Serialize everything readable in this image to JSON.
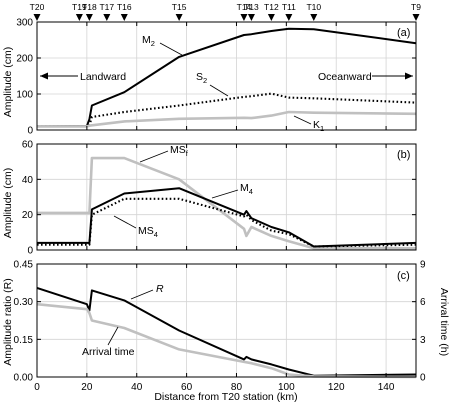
{
  "chart_data": [
    {
      "panel": "(a)",
      "type": "line",
      "xlabel": "",
      "ylabel": "Amplitude (cm)",
      "xlim": [
        0,
        152
      ],
      "ylim": [
        0,
        300
      ],
      "yticks": [
        0,
        100,
        200,
        300
      ],
      "grid": true,
      "stations": [
        {
          "name": "T20",
          "x": 0
        },
        {
          "name": "T19",
          "x": 17
        },
        {
          "name": "T18",
          "x": 21
        },
        {
          "name": "T17",
          "x": 28
        },
        {
          "name": "T16",
          "x": 35
        },
        {
          "name": "T15",
          "x": 57
        },
        {
          "name": "T14",
          "x": 83
        },
        {
          "name": "T13",
          "x": 86
        },
        {
          "name": "T12",
          "x": 94
        },
        {
          "name": "T11",
          "x": 101
        },
        {
          "name": "T10",
          "x": 111
        },
        {
          "name": "T9",
          "x": 152
        }
      ],
      "series": [
        {
          "name": "M2",
          "color": "#000000",
          "style": "solid",
          "x": [
            0,
            20,
            21,
            22,
            35,
            57,
            83,
            86,
            94,
            101,
            111,
            152
          ],
          "y": [
            10,
            11,
            30,
            68,
            105,
            203,
            264,
            266,
            275,
            281,
            280,
            241
          ]
        },
        {
          "name": "S2",
          "color": "#000000",
          "style": "dotted",
          "x": [
            0,
            20,
            21,
            22,
            35,
            57,
            83,
            86,
            94,
            101,
            111,
            152
          ],
          "y": [
            10,
            10,
            13,
            36,
            50,
            68,
            92,
            94,
            101,
            90,
            88,
            76
          ]
        },
        {
          "name": "K1",
          "color": "#c0c0c0",
          "style": "solid",
          "x": [
            0,
            20,
            21,
            22,
            35,
            57,
            83,
            86,
            94,
            101,
            111,
            152
          ],
          "y": [
            10,
            10,
            12,
            13,
            24,
            31,
            34,
            33,
            40,
            50,
            48,
            45
          ]
        }
      ],
      "annotations": [
        {
          "text": "Landward",
          "x": 12,
          "y": 170
        },
        {
          "text": "Oceanward",
          "x": 138,
          "y": 170
        }
      ]
    },
    {
      "panel": "(b)",
      "type": "line",
      "xlabel": "",
      "ylabel": "Amplitude (cm)",
      "xlim": [
        0,
        152
      ],
      "ylim": [
        0,
        60
      ],
      "yticks": [
        0,
        20,
        40,
        60
      ],
      "grid": true,
      "series": [
        {
          "name": "MSf",
          "color": "#c0c0c0",
          "style": "solid",
          "x": [
            0,
            20,
            21,
            22,
            35,
            57,
            83,
            84,
            86,
            94,
            101,
            111,
            152
          ],
          "y": [
            21,
            21,
            21,
            52,
            52,
            40,
            12,
            8,
            13,
            8,
            5,
            1,
            1
          ]
        },
        {
          "name": "M4",
          "color": "#000000",
          "style": "solid",
          "x": [
            0,
            20,
            21,
            22,
            35,
            57,
            83,
            84,
            86,
            94,
            101,
            111,
            152
          ],
          "y": [
            4,
            4,
            4,
            23,
            32,
            35,
            20,
            22,
            18,
            13,
            10,
            2,
            4
          ]
        },
        {
          "name": "MS4",
          "color": "#000000",
          "style": "dotted",
          "x": [
            0,
            20,
            21,
            22,
            35,
            57,
            83,
            84,
            86,
            94,
            101,
            111,
            152
          ],
          "y": [
            3,
            3,
            3,
            20,
            29,
            29,
            19,
            20,
            17,
            11,
            9,
            2,
            3
          ]
        }
      ]
    },
    {
      "panel": "(c)",
      "type": "line",
      "xlabel": "Distance from T20 station (km)",
      "ylabel": "Amplitude ratio (R)",
      "y2label": "Arrival time (h)",
      "xlim": [
        0,
        152
      ],
      "xticks": [
        0,
        20,
        40,
        60,
        80,
        100,
        120,
        140
      ],
      "ylim": [
        0,
        0.45
      ],
      "yticks": [
        0,
        0.15,
        0.3,
        0.45
      ],
      "y2lim": [
        0,
        9
      ],
      "y2ticks": [
        0,
        3,
        6,
        9
      ],
      "grid": true,
      "series": [
        {
          "name": "R",
          "axis": "left",
          "color": "#000000",
          "style": "solid",
          "x": [
            0,
            20,
            21,
            22,
            35,
            57,
            83,
            84,
            86,
            94,
            101,
            111,
            152
          ],
          "y": [
            0.355,
            0.29,
            0.265,
            0.345,
            0.305,
            0.185,
            0.07,
            0.08,
            0.07,
            0.05,
            0.03,
            0.005,
            0.01
          ]
        },
        {
          "name": "Arrival time",
          "axis": "right",
          "color": "#c0c0c0",
          "style": "solid",
          "x": [
            0,
            20,
            21,
            22,
            35,
            57,
            83,
            86,
            94,
            101,
            111,
            152
          ],
          "y": [
            5.8,
            5.4,
            5.1,
            4.5,
            3.9,
            2.2,
            1.2,
            1.1,
            0.7,
            0.2,
            0.05,
            0.0
          ]
        }
      ]
    }
  ],
  "labels": {
    "panel_a_tag": "(a)",
    "panel_b_tag": "(b)",
    "panel_c_tag": "(c)",
    "landward": "Landward",
    "oceanward": "Oceanward",
    "M2": "M",
    "M2_sub": "2",
    "S2": "S",
    "S2_sub": "2",
    "K1": "K",
    "K1_sub": "1",
    "MSf": "MS",
    "MSf_sub": "f",
    "M4": "M",
    "M4_sub": "4",
    "MS4": "MS",
    "MS4_sub": "4",
    "R": "R",
    "arrival_time": "Arrival time",
    "ylabel_a": "Amplitude (cm)",
    "ylabel_b": "Amplitude (cm)",
    "ylabel_c": "Amplitude ratio (R)",
    "y2label_c": "Arrival time (h)",
    "xlabel": "Distance from T20 station (km)"
  }
}
